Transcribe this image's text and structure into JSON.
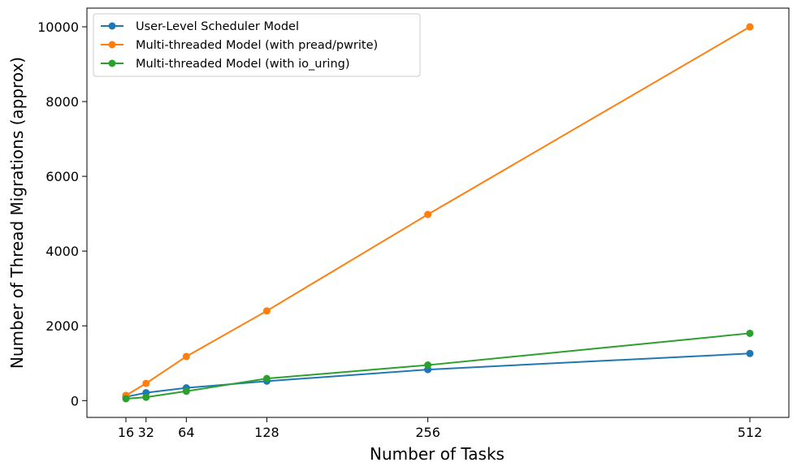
{
  "chart_data": {
    "type": "line",
    "title": "",
    "xlabel": "Number of Tasks",
    "ylabel": "Number of Thread Migrations (approx)",
    "x": [
      16,
      32,
      64,
      128,
      256,
      512
    ],
    "xticks": [
      "16",
      "32",
      "64",
      "128",
      "256",
      "512"
    ],
    "yticks": [
      0,
      2000,
      4000,
      6000,
      8000,
      10000
    ],
    "xlim": [
      -15,
      543
    ],
    "ylim": [
      -450,
      10500
    ],
    "grid": false,
    "legend_position": "top-left",
    "series": [
      {
        "name": "User-Level Scheduler Model",
        "color": "#1f77b4",
        "values": [
          100,
          210,
          340,
          520,
          830,
          1260
        ]
      },
      {
        "name": "Multi-threaded Model (with pread/pwrite)",
        "color": "#ff7f0e",
        "values": [
          140,
          460,
          1180,
          2400,
          4980,
          10000
        ]
      },
      {
        "name": "Multi-threaded Model (with io_uring)",
        "color": "#2ca02c",
        "values": [
          50,
          90,
          250,
          590,
          950,
          1800
        ]
      }
    ]
  }
}
